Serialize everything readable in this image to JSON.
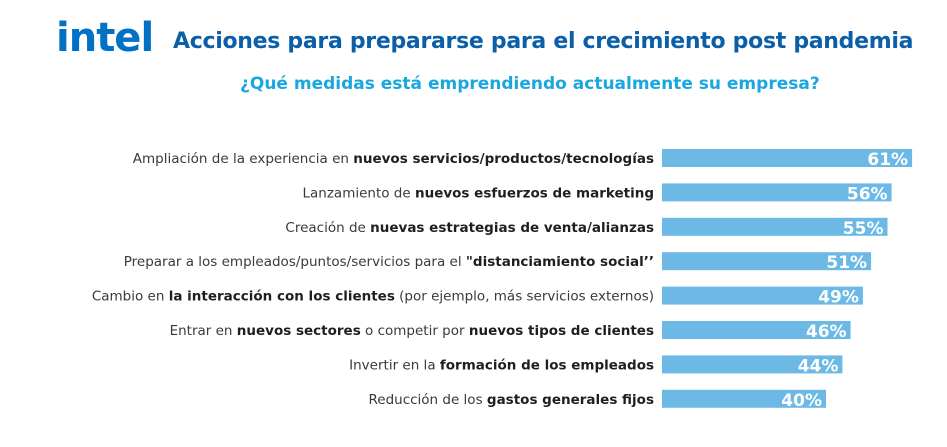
{
  "logo": {
    "text": "intel"
  },
  "colors": {
    "brand": "#0071c5",
    "title": "#0b5ea8",
    "subtitle": "#1aa7df",
    "bar": "#6db9e6"
  },
  "chart_data": {
    "type": "bar",
    "orientation": "horizontal",
    "title": "Acciones para prepararse para el crecimiento post pandemia",
    "subtitle": "¿Qué medidas está emprendiendo actualmente su empresa?",
    "categories": [
      [
        {
          "t": "Ampliación de la experiencia en ",
          "b": false
        },
        {
          "t": "nuevos servicios/productos/tecnologías",
          "b": true
        }
      ],
      [
        {
          "t": "Lanzamiento de ",
          "b": false
        },
        {
          "t": "nuevos esfuerzos de marketing",
          "b": true
        }
      ],
      [
        {
          "t": "Creación de ",
          "b": false
        },
        {
          "t": "nuevas estrategias de venta/alianzas",
          "b": true
        }
      ],
      [
        {
          "t": "Preparar a los empleados/puntos/servicios para el ",
          "b": false
        },
        {
          "t": "\"distanciamiento social’’",
          "b": true
        }
      ],
      [
        {
          "t": "Cambio en ",
          "b": false
        },
        {
          "t": "la interacción con los clientes",
          "b": true
        },
        {
          "t": " (por ejemplo, más servicios externos)",
          "b": false
        }
      ],
      [
        {
          "t": "Entrar en ",
          "b": false
        },
        {
          "t": "nuevos sectores",
          "b": true
        },
        {
          "t": " o competir por ",
          "b": false
        },
        {
          "t": "nuevos tipos de clientes",
          "b": true
        }
      ],
      [
        {
          "t": "Invertir en la ",
          "b": false
        },
        {
          "t": "formación de los empleados",
          "b": true
        }
      ],
      [
        {
          "t": "Reducción de los ",
          "b": false
        },
        {
          "t": "gastos generales fijos",
          "b": true
        }
      ]
    ],
    "values": [
      61,
      56,
      55,
      51,
      49,
      46,
      44,
      40
    ],
    "value_labels": [
      "61%",
      "56%",
      "55%",
      "51%",
      "49%",
      "46%",
      "44%",
      "40%"
    ],
    "xlim": [
      0,
      100
    ],
    "grid": false,
    "legend": "none"
  }
}
